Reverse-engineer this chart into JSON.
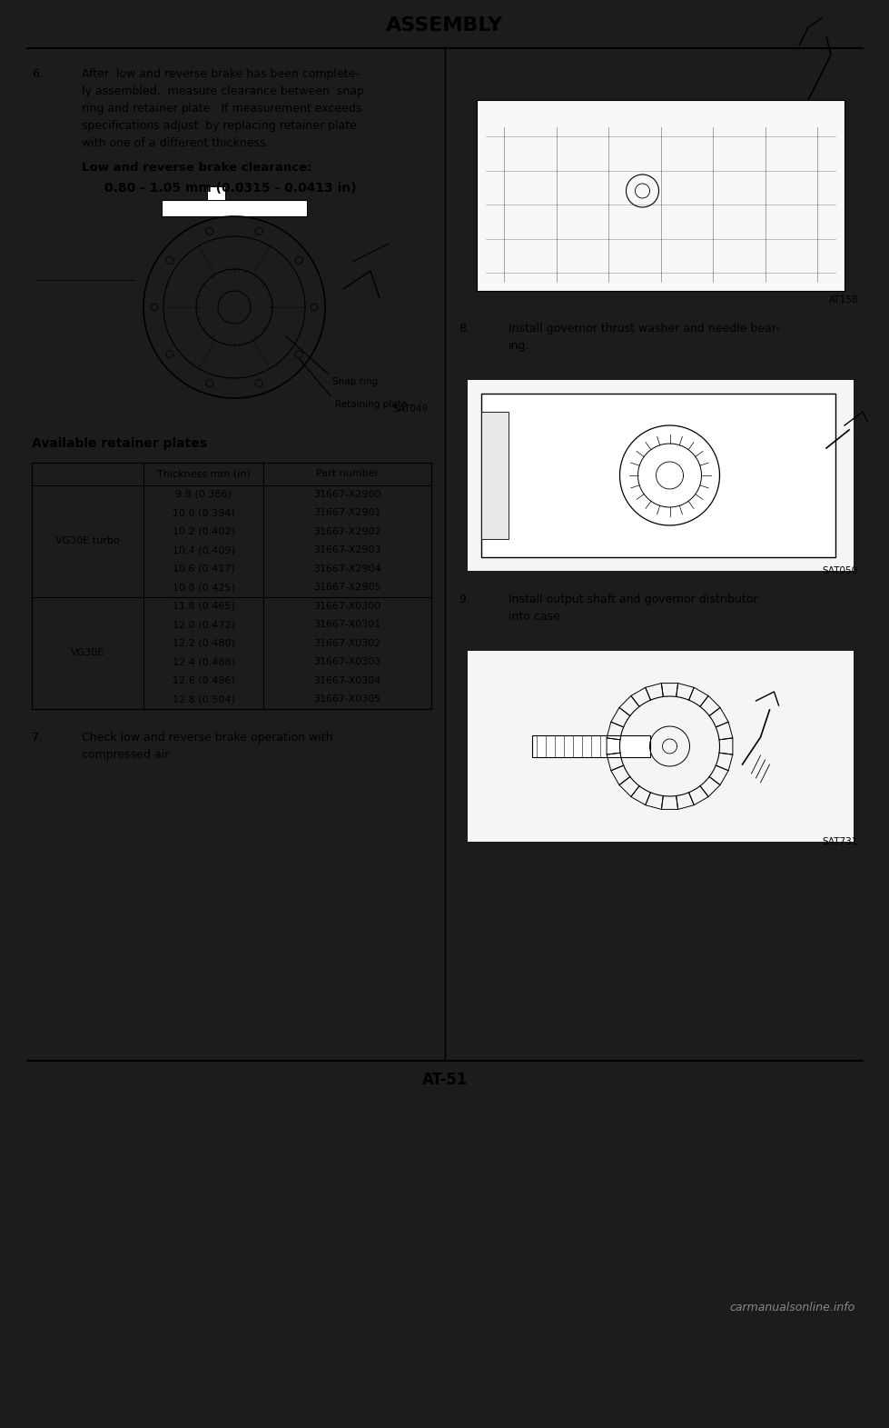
{
  "title": "ASSEMBLY",
  "page_number": "AT-51",
  "watermark": "carmanualsonline.info",
  "outer_bg": "#1c1c1c",
  "page_bg": "#ffffff",
  "section6_lines": [
    "After  low and reverse brake has been complete-",
    "ly assembled,  measure clearance between  snap",
    "ring and retainer plate.  If measurement exceeds",
    "specifications adjust  by replacing retainer plate",
    "with one of a different thickness."
  ],
  "bold_label": "Low and reverse brake clearance:",
  "bold_value": "0.80 - 1.05 mm (0.0315 - 0.0413 in)",
  "snap_ring_label": "Snap ring",
  "retaining_plate_label": "Retaining plate",
  "fig1_label": "SAT049",
  "table_title": "Available retainer plates",
  "col_header1": "Thickness mm (in)",
  "col_header2": "Part number",
  "grp1_label": "VG30E turbo",
  "grp1_rows": [
    [
      "9.8 (0.386)",
      "31667-X2900"
    ],
    [
      "10.0 (0.394)",
      "31667-X2901"
    ],
    [
      "10.2 (0.402)",
      "31667-X2902"
    ],
    [
      "10.4 (0.409)",
      "31667-X2903"
    ],
    [
      "10.6 (0.417)",
      "31667-X2904"
    ],
    [
      "10.8 (0.425)",
      "31667-X2905"
    ]
  ],
  "grp2_label": "VG30E",
  "grp2_rows": [
    [
      "11.8 (0.465)",
      "31667-X0300"
    ],
    [
      "12.0 (0.472)",
      "31667-X0301"
    ],
    [
      "12.2 (0.480)",
      "31667-X0302"
    ],
    [
      "12.4 (0.488)",
      "31667-X0303"
    ],
    [
      "12.6 (0.496)",
      "31667-X0304"
    ],
    [
      "12.8 (0.504)",
      "31667-X0305"
    ]
  ],
  "sec7_lines": [
    "Check low and reverse brake operation with",
    "compressed air."
  ],
  "fig2_label": "AT158",
  "sec8_lines": [
    "Install governor thrust washer and needle bear-",
    "ing."
  ],
  "fig3_label": "SAT050",
  "sec9_lines": [
    "Install output shaft and governor distributor",
    "into case."
  ],
  "fig4_label": "SAT731"
}
